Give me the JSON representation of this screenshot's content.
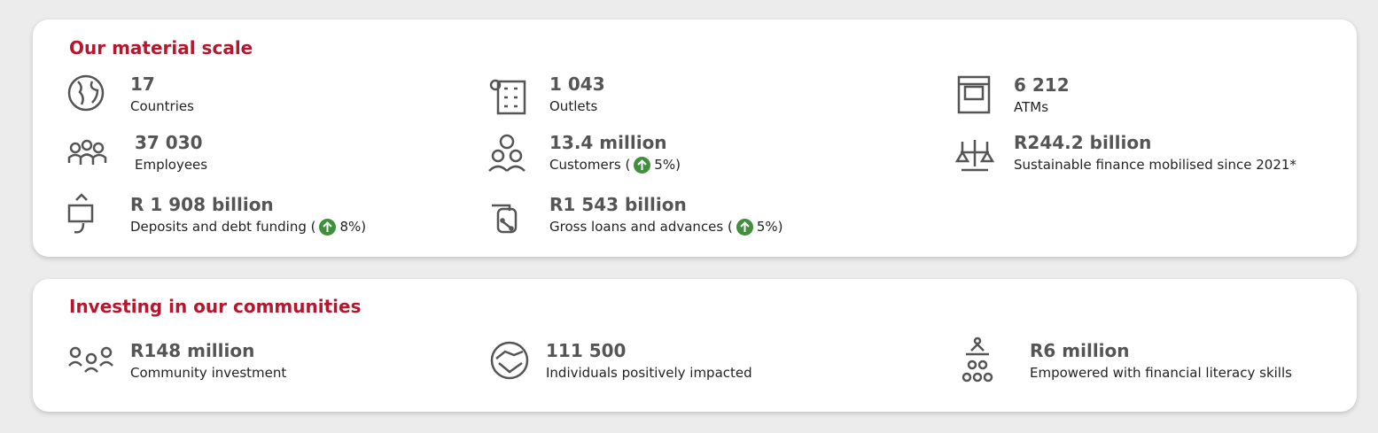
{
  "sections": [
    {
      "title": "Our material scale",
      "items": [
        {
          "value": "17",
          "label": "Countries"
        },
        {
          "value": "1 043",
          "label": "Outlets"
        },
        {
          "value": "6 212",
          "label": "ATMs"
        },
        {
          "value": "37 030",
          "label": "Employees"
        },
        {
          "value": "13.4 million",
          "label": "Customers (",
          "change": "5%)"
        },
        {
          "value": "R244.2 billion",
          "label": "Sustainable finance mobilised since 2021*"
        },
        {
          "value": "R 1 908 billion",
          "label": "Deposits and debt funding (",
          "change": "8%)"
        },
        {
          "value": "R1 543 billion",
          "label": "Gross loans and advances (",
          "change": "5%)"
        }
      ]
    },
    {
      "title": "Investing in our communities",
      "items": [
        {
          "value": "R148 million",
          "label": "Community investment"
        },
        {
          "value": "111 500",
          "label": "Individuals positively impacted"
        },
        {
          "value": "R6 million",
          "label": "Empowered with financial literacy skills"
        }
      ]
    }
  ]
}
